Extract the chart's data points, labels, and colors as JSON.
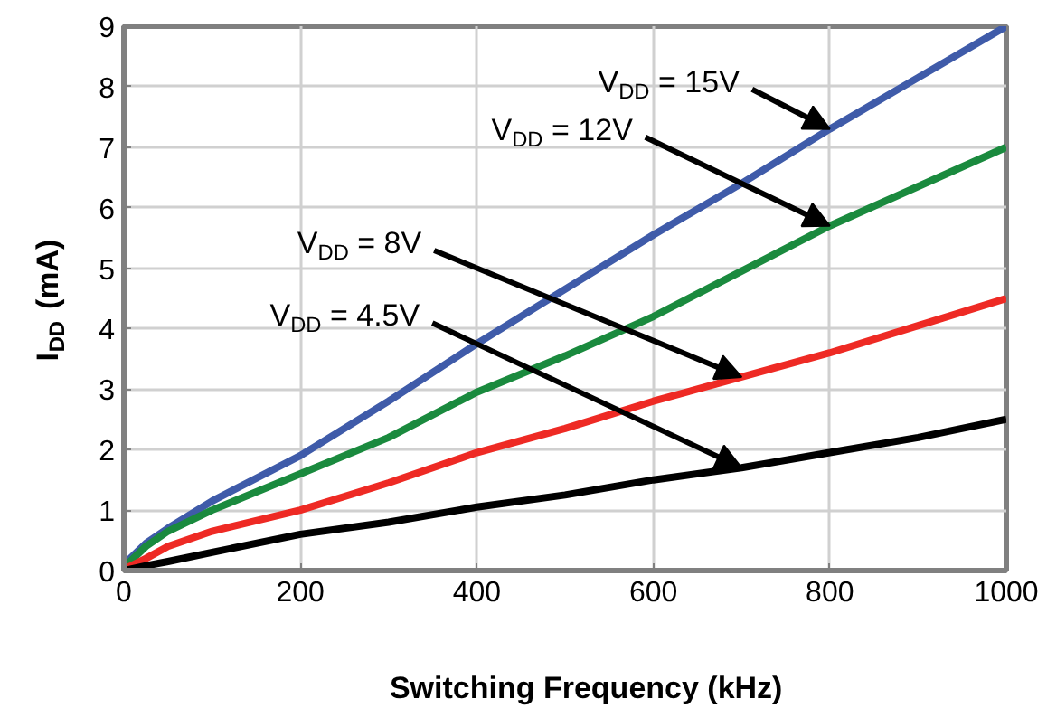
{
  "chart_data": {
    "type": "line",
    "xlabel": "Switching Frequency (kHz)",
    "ylabel": "I$_{DD}$ (mA)",
    "x": [
      0,
      25,
      50,
      100,
      200,
      300,
      400,
      500,
      600,
      700,
      800,
      900,
      1000
    ],
    "series": [
      {
        "name": "V$_{DD}$ = 15V",
        "color": "#3f5ba9",
        "values": [
          0.1,
          0.45,
          0.7,
          1.15,
          1.9,
          2.8,
          3.75,
          4.65,
          5.55,
          6.4,
          7.3,
          8.15,
          9.0
        ]
      },
      {
        "name": "V$_{DD}$ = 12V",
        "color": "#1a8a3e",
        "values": [
          0.05,
          0.4,
          0.65,
          1.0,
          1.6,
          2.2,
          2.95,
          3.55,
          4.2,
          4.95,
          5.7,
          6.35,
          7.0
        ]
      },
      {
        "name": "V$_{DD}$ = 8V",
        "color": "#ee2a24",
        "values": [
          0.02,
          0.2,
          0.4,
          0.65,
          1.0,
          1.45,
          1.95,
          2.35,
          2.8,
          3.2,
          3.6,
          4.05,
          4.5
        ]
      },
      {
        "name": "V$_{DD}$ = 4.5V",
        "color": "#000000",
        "values": [
          0.0,
          0.08,
          0.15,
          0.3,
          0.6,
          0.8,
          1.05,
          1.25,
          1.5,
          1.7,
          1.95,
          2.2,
          2.5
        ]
      }
    ],
    "xlim": [
      0,
      1000
    ],
    "ylim": [
      0,
      9
    ],
    "xticks": [
      0,
      200,
      400,
      600,
      800,
      1000
    ],
    "yticks": [
      0,
      1,
      2,
      3,
      4,
      5,
      6,
      7,
      8,
      9
    ],
    "grid": true,
    "marker": "none",
    "line_style": "solid"
  }
}
